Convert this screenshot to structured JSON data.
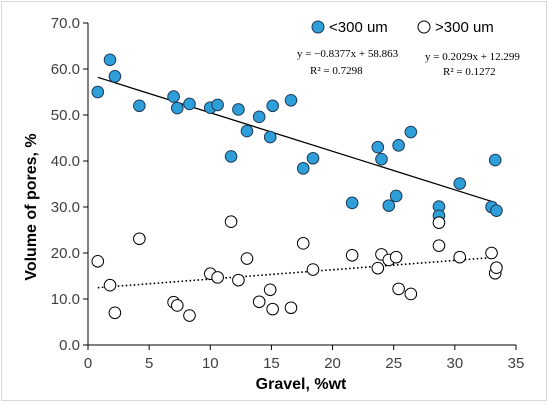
{
  "chart_data": {
    "type": "scatter",
    "xlabel": "Gravel, %wt",
    "ylabel": "Volume of pores, %",
    "xlim": [
      0,
      35
    ],
    "ylim": [
      0,
      70
    ],
    "xticks": [
      "0",
      "5",
      "10",
      "15",
      "20",
      "25",
      "30",
      "35"
    ],
    "yticks": [
      "0.0",
      "10.0",
      "20.0",
      "30.0",
      "40.0",
      "50.0",
      "60.0",
      "70.0"
    ],
    "grid": false,
    "legend_position": "top-right",
    "series": [
      {
        "name": "<300 um",
        "marker": "filled-circle",
        "color": "#2e9fd8",
        "edge": "#1f3a5a",
        "points": [
          [
            0.8,
            55.0
          ],
          [
            1.8,
            62.0
          ],
          [
            2.2,
            58.4
          ],
          [
            4.2,
            52.0
          ],
          [
            7.0,
            54.0
          ],
          [
            7.3,
            51.5
          ],
          [
            8.3,
            52.4
          ],
          [
            10.0,
            51.6
          ],
          [
            10.6,
            52.2
          ],
          [
            12.3,
            51.2
          ],
          [
            13.0,
            46.5
          ],
          [
            14.0,
            49.6
          ],
          [
            11.7,
            41.0
          ],
          [
            14.9,
            45.2
          ],
          [
            15.1,
            52.0
          ],
          [
            16.6,
            53.2
          ],
          [
            17.6,
            38.4
          ],
          [
            18.4,
            40.6
          ],
          [
            21.6,
            30.9
          ],
          [
            23.7,
            43.0
          ],
          [
            24.0,
            40.4
          ],
          [
            24.6,
            30.3
          ],
          [
            25.2,
            32.4
          ],
          [
            25.4,
            43.4
          ],
          [
            26.4,
            46.3
          ],
          [
            28.7,
            30.1
          ],
          [
            28.7,
            28.1
          ],
          [
            30.4,
            35.1
          ],
          [
            33.0,
            30.0
          ],
          [
            33.3,
            40.2
          ],
          [
            33.4,
            29.2
          ]
        ],
        "trend": {
          "slope": -0.8377,
          "intercept": 58.863,
          "style": "solid",
          "equation": "y = −0.8377x + 58.863",
          "r2": "R² = 0.7298"
        }
      },
      {
        "name": ">300 um",
        "marker": "open-circle",
        "color": "#ffffff",
        "edge": "#000000",
        "points": [
          [
            0.8,
            18.2
          ],
          [
            1.8,
            13.0
          ],
          [
            2.2,
            7.0
          ],
          [
            4.2,
            23.1
          ],
          [
            7.0,
            9.3
          ],
          [
            7.3,
            8.6
          ],
          [
            8.3,
            6.4
          ],
          [
            10.0,
            15.5
          ],
          [
            10.6,
            14.7
          ],
          [
            11.7,
            26.8
          ],
          [
            12.3,
            14.1
          ],
          [
            13.0,
            18.8
          ],
          [
            14.0,
            9.4
          ],
          [
            14.9,
            12.0
          ],
          [
            15.1,
            7.8
          ],
          [
            16.6,
            8.1
          ],
          [
            17.6,
            22.1
          ],
          [
            18.4,
            16.4
          ],
          [
            21.6,
            19.5
          ],
          [
            23.7,
            16.7
          ],
          [
            24.0,
            19.7
          ],
          [
            24.6,
            18.5
          ],
          [
            25.2,
            19.1
          ],
          [
            25.4,
            12.2
          ],
          [
            26.4,
            11.1
          ],
          [
            28.7,
            21.6
          ],
          [
            28.7,
            26.6
          ],
          [
            30.4,
            19.1
          ],
          [
            33.0,
            20.0
          ],
          [
            33.3,
            15.6
          ],
          [
            33.4,
            16.8
          ]
        ],
        "trend": {
          "slope": 0.2029,
          "intercept": 12.299,
          "style": "dotted",
          "equation": "y = 0.2029x + 12.299",
          "r2": "R² = 0.1272"
        }
      }
    ]
  }
}
